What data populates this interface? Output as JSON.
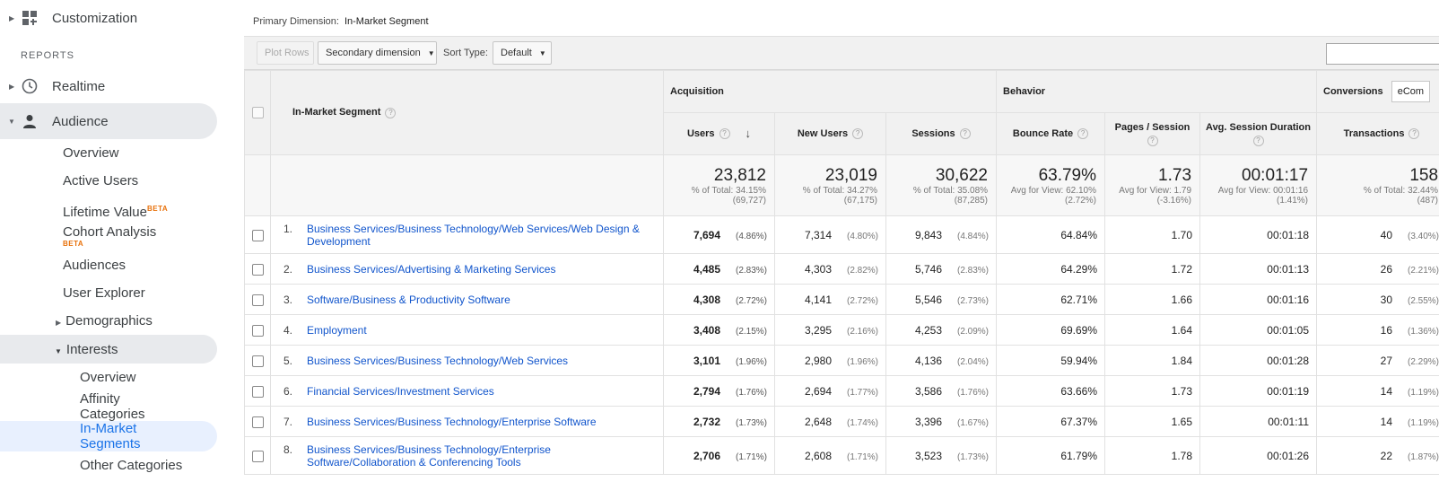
{
  "sidebar": {
    "customization": "Customization",
    "reports_label": "REPORTS",
    "realtime": "Realtime",
    "audience": "Audience",
    "items": {
      "overview": "Overview",
      "active_users": "Active Users",
      "lifetime_value": "Lifetime Value",
      "cohort_analysis": "Cohort Analysis",
      "audiences": "Audiences",
      "user_explorer": "User Explorer",
      "demographics": "Demographics",
      "interests": "Interests"
    },
    "interests_items": {
      "overview": "Overview",
      "affinity_line1": "Affinity",
      "affinity_line2": "Categories",
      "in_market_line1": "In-Market",
      "in_market_line2": "Segments",
      "other": "Other Categories"
    },
    "beta": "BETA"
  },
  "primary_dimension": {
    "label": "Primary Dimension:",
    "value": "In-Market Segment"
  },
  "toolbar": {
    "plot_rows": "Plot Rows",
    "secondary_dimension": "Secondary dimension",
    "sort_type_label": "Sort Type:",
    "sort_type_value": "Default"
  },
  "table": {
    "segment_header": "In-Market Segment",
    "groups": {
      "acquisition": "Acquisition",
      "behavior": "Behavior",
      "conversions": "Conversions",
      "conversions_select": "eCom"
    },
    "columns": {
      "users": "Users",
      "new_users": "New Users",
      "sessions": "Sessions",
      "bounce_rate": "Bounce Rate",
      "pages_session": "Pages / Session",
      "avg_duration": "Avg. Session Duration",
      "transactions": "Transactions"
    },
    "totals": {
      "users": {
        "value": "23,812",
        "sub1": "% of Total: 34.15%",
        "sub2": "(69,727)"
      },
      "new_users": {
        "value": "23,019",
        "sub1": "% of Total: 34.27%",
        "sub2": "(67,175)"
      },
      "sessions": {
        "value": "30,622",
        "sub1": "% of Total: 35.08%",
        "sub2": "(87,285)"
      },
      "bounce_rate": {
        "value": "63.79%",
        "sub1": "Avg for View: 62.10%",
        "sub2": "(2.72%)"
      },
      "pages_session": {
        "value": "1.73",
        "sub1": "Avg for View: 1.79",
        "sub2": "(-3.16%)"
      },
      "avg_duration": {
        "value": "00:01:17",
        "sub1": "Avg for View: 00:01:16",
        "sub2": "(1.41%)"
      },
      "transactions": {
        "value": "158",
        "sub1": "% of Total: 32.44%",
        "sub2": "(487)"
      }
    },
    "rows": [
      {
        "num": "1.",
        "segment": "Business Services/Business Technology/Web Services/Web Design & Development",
        "users": "7,694",
        "users_pct": "(4.86%)",
        "new_users": "7,314",
        "new_users_pct": "(4.80%)",
        "sessions": "9,843",
        "sessions_pct": "(4.84%)",
        "bounce": "64.84%",
        "pages": "1.70",
        "duration": "00:01:18",
        "transactions": "40",
        "transactions_pct": "(3.40%)"
      },
      {
        "num": "2.",
        "segment": "Business Services/Advertising & Marketing Services",
        "users": "4,485",
        "users_pct": "(2.83%)",
        "new_users": "4,303",
        "new_users_pct": "(2.82%)",
        "sessions": "5,746",
        "sessions_pct": "(2.83%)",
        "bounce": "64.29%",
        "pages": "1.72",
        "duration": "00:01:13",
        "transactions": "26",
        "transactions_pct": "(2.21%)"
      },
      {
        "num": "3.",
        "segment": "Software/Business & Productivity Software",
        "users": "4,308",
        "users_pct": "(2.72%)",
        "new_users": "4,141",
        "new_users_pct": "(2.72%)",
        "sessions": "5,546",
        "sessions_pct": "(2.73%)",
        "bounce": "62.71%",
        "pages": "1.66",
        "duration": "00:01:16",
        "transactions": "30",
        "transactions_pct": "(2.55%)"
      },
      {
        "num": "4.",
        "segment": "Employment",
        "users": "3,408",
        "users_pct": "(2.15%)",
        "new_users": "3,295",
        "new_users_pct": "(2.16%)",
        "sessions": "4,253",
        "sessions_pct": "(2.09%)",
        "bounce": "69.69%",
        "pages": "1.64",
        "duration": "00:01:05",
        "transactions": "16",
        "transactions_pct": "(1.36%)"
      },
      {
        "num": "5.",
        "segment": "Business Services/Business Technology/Web Services",
        "users": "3,101",
        "users_pct": "(1.96%)",
        "new_users": "2,980",
        "new_users_pct": "(1.96%)",
        "sessions": "4,136",
        "sessions_pct": "(2.04%)",
        "bounce": "59.94%",
        "pages": "1.84",
        "duration": "00:01:28",
        "transactions": "27",
        "transactions_pct": "(2.29%)"
      },
      {
        "num": "6.",
        "segment": "Financial Services/Investment Services",
        "users": "2,794",
        "users_pct": "(1.76%)",
        "new_users": "2,694",
        "new_users_pct": "(1.77%)",
        "sessions": "3,586",
        "sessions_pct": "(1.76%)",
        "bounce": "63.66%",
        "pages": "1.73",
        "duration": "00:01:19",
        "transactions": "14",
        "transactions_pct": "(1.19%)"
      },
      {
        "num": "7.",
        "segment": "Business Services/Business Technology/Enterprise Software",
        "users": "2,732",
        "users_pct": "(1.73%)",
        "new_users": "2,648",
        "new_users_pct": "(1.74%)",
        "sessions": "3,396",
        "sessions_pct": "(1.67%)",
        "bounce": "67.37%",
        "pages": "1.65",
        "duration": "00:01:11",
        "transactions": "14",
        "transactions_pct": "(1.19%)"
      },
      {
        "num": "8.",
        "segment": "Business Services/Business Technology/Enterprise Software/Collaboration & Conferencing Tools",
        "users": "2,706",
        "users_pct": "(1.71%)",
        "new_users": "2,608",
        "new_users_pct": "(1.71%)",
        "sessions": "3,523",
        "sessions_pct": "(1.73%)",
        "bounce": "61.79%",
        "pages": "1.78",
        "duration": "00:01:26",
        "transactions": "22",
        "transactions_pct": "(1.87%)"
      }
    ]
  }
}
